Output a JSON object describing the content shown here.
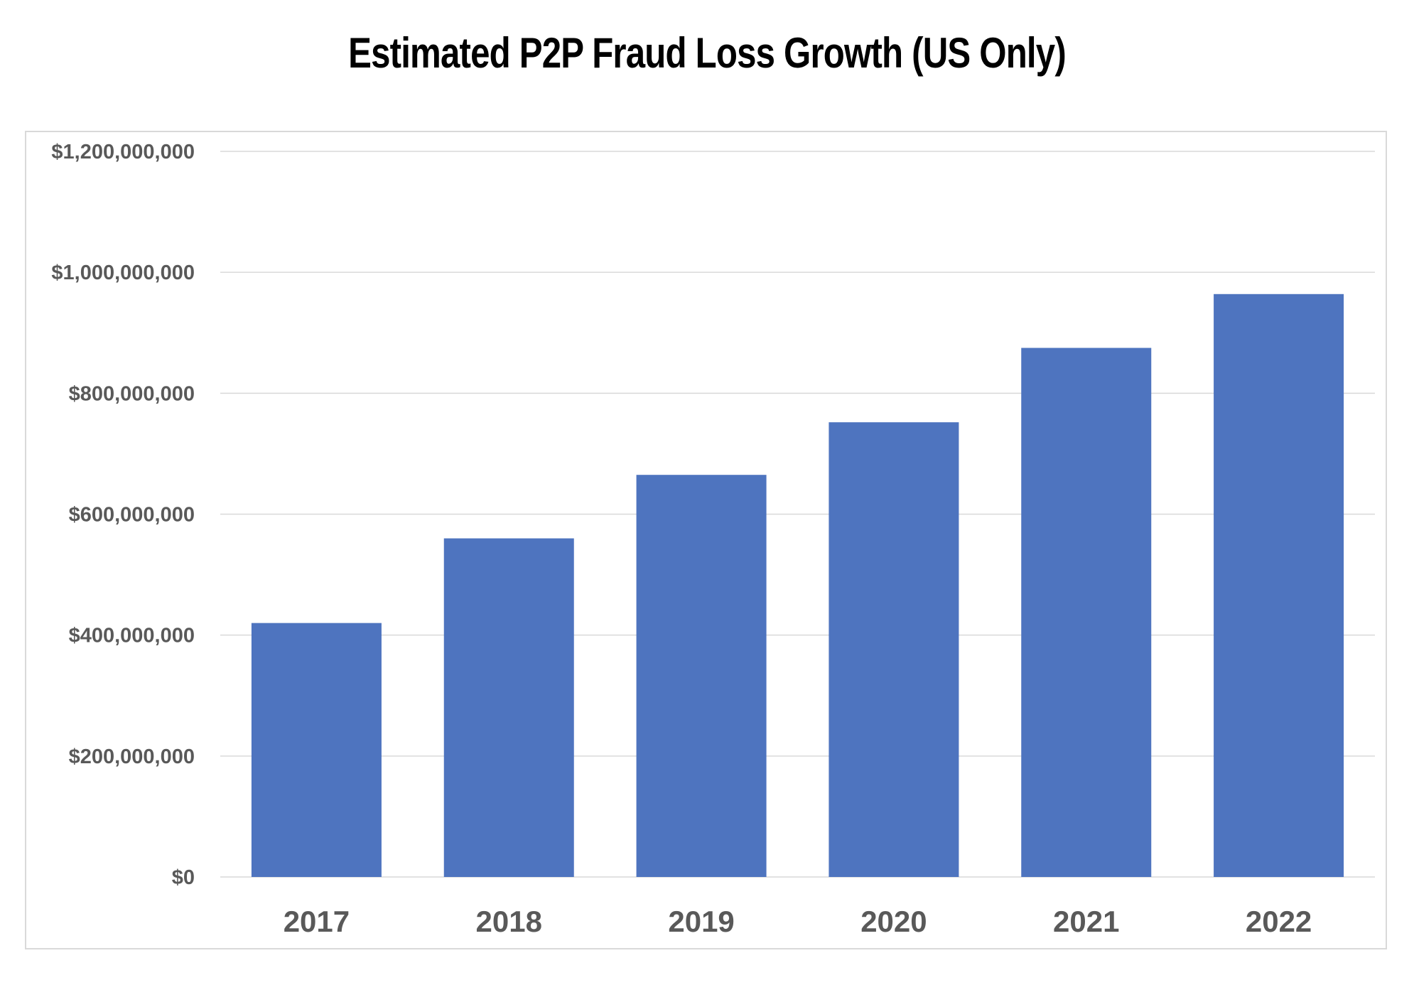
{
  "chart_data": {
    "type": "bar",
    "title": "Estimated P2P Fraud Loss Growth (US Only)",
    "xlabel": "",
    "ylabel": "",
    "categories": [
      "2017",
      "2018",
      "2019",
      "2020",
      "2021",
      "2022"
    ],
    "values": [
      420000000,
      560000000,
      665000000,
      752000000,
      875000000,
      964000000
    ],
    "ylim": [
      0,
      1200000000
    ],
    "y_ticks": [
      0,
      200000000,
      400000000,
      600000000,
      800000000,
      1000000000,
      1200000000
    ],
    "y_tick_labels": [
      "$0",
      "$200,000,000",
      "$400,000,000",
      "$600,000,000",
      "$800,000,000",
      "$1,000,000,000",
      "$1,200,000,000"
    ],
    "grid": true,
    "legend": "none",
    "bar_color": "#4e74bf",
    "grid_color": "#d9d9d9",
    "label_color": "#595959"
  }
}
